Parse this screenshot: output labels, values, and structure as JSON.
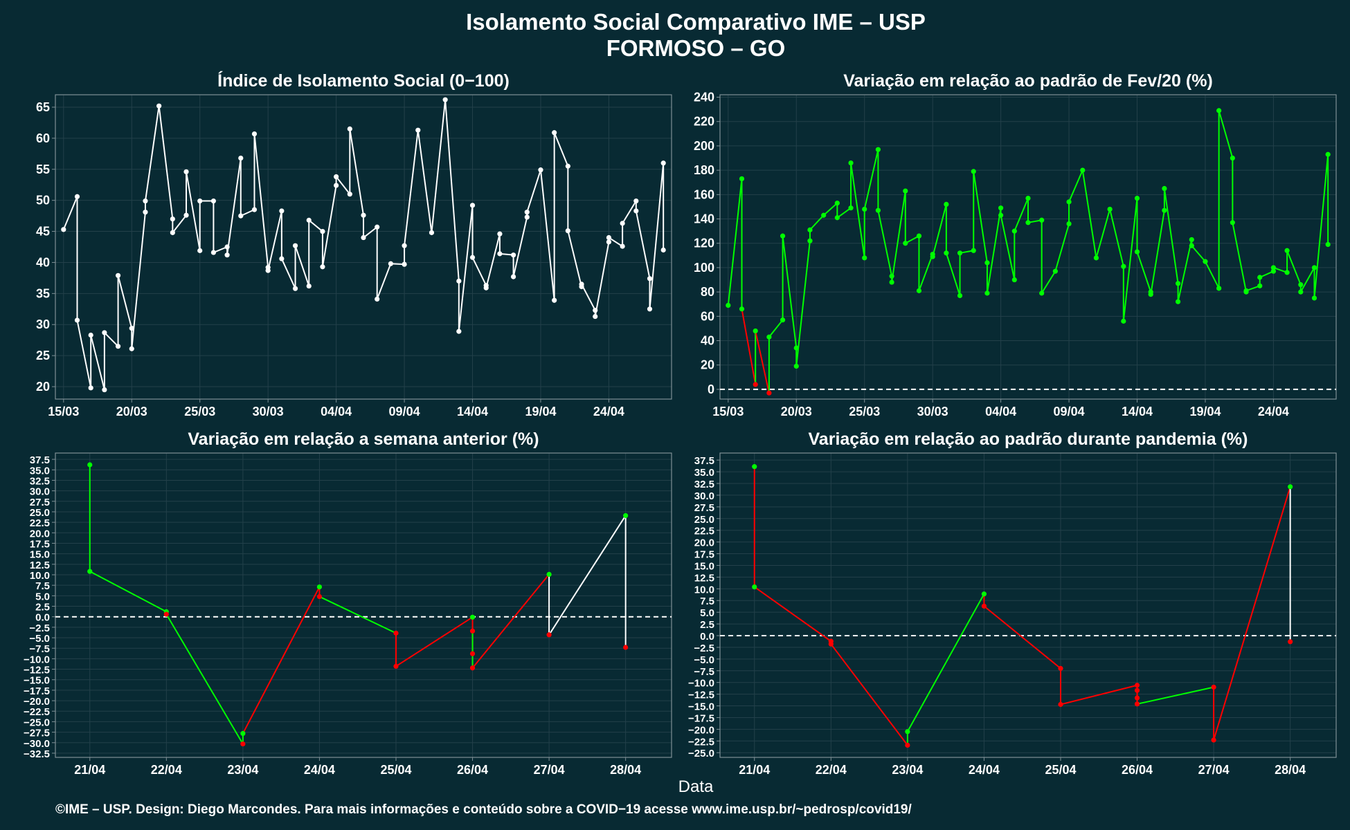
{
  "header": {
    "title_line1": "Isolamento Social Comparativo IME – USP",
    "title_line2": "FORMOSO – GO"
  },
  "footer": {
    "xlabel": "Data",
    "caption": "©IME – USP. Design: Diego Marcondes. Para mais informações e conteúdo sobre a COVID−19 acesse www.ime.usp.br/~pedrosp/covid19/"
  },
  "colors": {
    "background": "#082a33",
    "white_line": "#ffffff",
    "up": "#00ff00",
    "down": "#ff0000",
    "zero_line": "#ffffff"
  },
  "chart_data": [
    {
      "id": "indice",
      "type": "line",
      "title": "Índice de Isolamento Social (0−100)",
      "xlabel": "",
      "ylabel": "",
      "x_tick_labels": [
        "15/03",
        "20/03",
        "25/03",
        "30/03",
        "04/04",
        "09/04",
        "14/04",
        "19/04",
        "24/04"
      ],
      "x_tick_days": [
        0,
        5,
        10,
        15,
        20,
        25,
        30,
        35,
        40
      ],
      "x_range": [
        -0.6,
        44.6
      ],
      "y_ticks": [
        20,
        25,
        30,
        35,
        40,
        45,
        50,
        55,
        60,
        65
      ],
      "y_range": [
        18,
        67
      ],
      "color": "#ffffff",
      "grid": true,
      "points": [
        [
          0,
          45.3
        ],
        [
          1,
          50.6
        ],
        [
          1,
          30.7
        ],
        [
          2,
          19.8
        ],
        [
          2,
          28.3
        ],
        [
          3,
          19.5
        ],
        [
          3,
          28.7
        ],
        [
          4,
          26.5
        ],
        [
          4,
          37.9
        ],
        [
          5,
          29.4
        ],
        [
          5,
          26.1
        ],
        [
          6,
          48.1
        ],
        [
          6,
          49.9
        ],
        [
          7,
          65.2
        ],
        [
          8,
          47.0
        ],
        [
          8,
          44.8
        ],
        [
          9,
          47.6
        ],
        [
          9,
          54.6
        ],
        [
          10,
          41.9
        ],
        [
          10,
          49.9
        ],
        [
          11,
          49.9
        ],
        [
          11,
          41.6
        ],
        [
          12,
          42.5
        ],
        [
          12,
          41.2
        ],
        [
          13,
          56.8
        ],
        [
          13,
          47.5
        ],
        [
          14,
          48.5
        ],
        [
          14,
          60.7
        ],
        [
          15,
          39.2
        ],
        [
          15,
          38.7
        ],
        [
          16,
          48.3
        ],
        [
          16,
          40.6
        ],
        [
          17,
          35.8
        ],
        [
          17,
          42.7
        ],
        [
          18,
          36.2
        ],
        [
          18,
          46.8
        ],
        [
          19,
          45.0
        ],
        [
          19,
          39.3
        ],
        [
          20,
          52.4
        ],
        [
          20,
          53.8
        ],
        [
          21,
          51.0
        ],
        [
          21,
          61.5
        ],
        [
          22,
          47.6
        ],
        [
          22,
          44.0
        ],
        [
          23,
          45.7
        ],
        [
          23,
          34.1
        ],
        [
          24,
          39.8
        ],
        [
          25,
          39.7
        ],
        [
          25,
          42.7
        ],
        [
          26,
          61.3
        ],
        [
          27,
          44.8
        ],
        [
          28,
          66.2
        ],
        [
          29,
          37.0
        ],
        [
          29,
          28.9
        ],
        [
          30,
          49.2
        ],
        [
          30,
          40.8
        ],
        [
          31,
          36.3
        ],
        [
          31,
          35.9
        ],
        [
          32,
          44.6
        ],
        [
          32,
          41.4
        ],
        [
          33,
          41.2
        ],
        [
          33,
          37.7
        ],
        [
          34,
          47.3
        ],
        [
          34,
          48.1
        ],
        [
          35,
          54.9
        ],
        [
          36,
          33.9
        ],
        [
          36,
          60.9
        ],
        [
          37,
          55.5
        ],
        [
          37,
          45.1
        ],
        [
          38,
          36.1
        ],
        [
          38,
          36.5
        ],
        [
          39,
          32.3
        ],
        [
          39,
          31.3
        ],
        [
          40,
          43.3
        ],
        [
          40,
          44.0
        ],
        [
          41,
          42.6
        ],
        [
          41,
          46.3
        ],
        [
          42,
          49.9
        ],
        [
          42,
          48.3
        ],
        [
          43,
          37.4
        ],
        [
          43,
          32.5
        ],
        [
          44,
          56.0
        ],
        [
          44,
          42.0
        ]
      ]
    },
    {
      "id": "fev20",
      "type": "line",
      "title": "Variação em relação ao padrão de Fev/20 (%)",
      "xlabel": "",
      "ylabel": "",
      "x_tick_labels": [
        "15/03",
        "20/03",
        "25/03",
        "30/03",
        "04/04",
        "09/04",
        "14/04",
        "19/04",
        "24/04"
      ],
      "x_tick_days": [
        0,
        5,
        10,
        15,
        20,
        25,
        30,
        35,
        40
      ],
      "x_range": [
        -0.6,
        44.6
      ],
      "y_ticks": [
        0,
        20,
        40,
        60,
        80,
        100,
        120,
        140,
        160,
        180,
        200,
        220,
        240
      ],
      "y_range": [
        -8,
        242
      ],
      "zero_line": true,
      "grid": true,
      "segments_colored": true,
      "points": [
        [
          0,
          69
        ],
        [
          1,
          173
        ],
        [
          1,
          66
        ],
        [
          2,
          4
        ],
        [
          2,
          48
        ],
        [
          3,
          -3
        ],
        [
          3,
          43
        ],
        [
          4,
          57
        ],
        [
          4,
          126
        ],
        [
          5,
          34
        ],
        [
          5,
          19
        ],
        [
          6,
          122
        ],
        [
          6,
          131
        ],
        [
          7,
          143
        ],
        [
          8,
          153
        ],
        [
          8,
          141
        ],
        [
          9,
          149
        ],
        [
          9,
          186
        ],
        [
          10,
          108
        ],
        [
          10,
          148
        ],
        [
          11,
          197
        ],
        [
          11,
          147
        ],
        [
          12,
          93
        ],
        [
          12,
          88
        ],
        [
          13,
          163
        ],
        [
          13,
          120
        ],
        [
          14,
          126
        ],
        [
          14,
          81
        ],
        [
          15,
          111
        ],
        [
          15,
          109
        ],
        [
          16,
          152
        ],
        [
          16,
          112
        ],
        [
          17,
          77
        ],
        [
          17,
          112
        ],
        [
          18,
          114
        ],
        [
          18,
          179
        ],
        [
          19,
          104
        ],
        [
          19,
          79
        ],
        [
          20,
          149
        ],
        [
          20,
          143
        ],
        [
          21,
          90
        ],
        [
          21,
          130
        ],
        [
          22,
          157
        ],
        [
          22,
          137
        ],
        [
          23,
          139
        ],
        [
          23,
          79
        ],
        [
          24,
          97
        ],
        [
          25,
          136
        ],
        [
          25,
          154
        ],
        [
          26,
          180
        ],
        [
          27,
          108
        ],
        [
          28,
          148
        ],
        [
          29,
          101
        ],
        [
          29,
          56
        ],
        [
          30,
          157
        ],
        [
          30,
          113
        ],
        [
          31,
          80
        ],
        [
          31,
          78
        ],
        [
          32,
          147
        ],
        [
          32,
          165
        ],
        [
          33,
          87
        ],
        [
          33,
          72
        ],
        [
          34,
          123
        ],
        [
          34,
          118
        ],
        [
          35,
          105
        ],
        [
          36,
          83
        ],
        [
          36,
          229
        ],
        [
          37,
          190
        ],
        [
          37,
          137
        ],
        [
          38,
          80
        ],
        [
          38,
          81
        ],
        [
          39,
          85
        ],
        [
          39,
          92
        ],
        [
          40,
          97
        ],
        [
          40,
          100
        ],
        [
          41,
          96
        ],
        [
          41,
          114
        ],
        [
          42,
          86
        ],
        [
          42,
          80
        ],
        [
          43,
          100
        ],
        [
          43,
          75
        ],
        [
          44,
          193
        ],
        [
          44,
          119
        ]
      ],
      "down_segments": [
        [
          2,
          3
        ],
        [
          4,
          5
        ]
      ]
    },
    {
      "id": "semana",
      "type": "line",
      "title": "Variação em relação a semana anterior (%)",
      "xlabel": "",
      "ylabel": "",
      "x_tick_labels": [
        "21/04",
        "22/04",
        "23/04",
        "24/04",
        "25/04",
        "26/04",
        "27/04",
        "28/04"
      ],
      "x_range": [
        -0.45,
        7.6
      ],
      "y_ticks": [
        -32.5,
        -30,
        -27.5,
        -25,
        -22.5,
        -20,
        -17.5,
        -15,
        -12.5,
        -10,
        -7.5,
        -5,
        -2.5,
        0,
        2.5,
        5,
        7.5,
        10,
        12.5,
        15,
        17.5,
        20,
        22.5,
        25,
        27.5,
        30,
        32.5,
        35,
        37.5
      ],
      "y_tick_labels": [
        "−32.5",
        "−30.0",
        "−27.5",
        "−25.0",
        "−22.5",
        "−20.0",
        "−17.5",
        "−15.0",
        "−12.5",
        "−10.0",
        "−7.5",
        "−5.0",
        "−2.5",
        "0.0",
        "2.5",
        "5.0",
        "7.5",
        "10.0",
        "12.5",
        "15.0",
        "17.5",
        "20.0",
        "22.5",
        "25.0",
        "27.5",
        "30.0",
        "32.5",
        "35.0",
        "37.5"
      ],
      "y_range": [
        -33.5,
        39
      ],
      "zero_line": true,
      "grid": true,
      "points": [
        [
          0,
          36.2,
          "up"
        ],
        [
          0,
          10.8,
          "up"
        ],
        [
          1,
          1.2,
          "up"
        ],
        [
          1,
          0.6,
          "down"
        ],
        [
          2,
          -30.3,
          "down"
        ],
        [
          2,
          -27.8,
          "up"
        ],
        [
          3,
          7.1,
          "up"
        ],
        [
          3,
          4.8,
          "down"
        ],
        [
          4,
          -3.9,
          "down"
        ],
        [
          4,
          -11.8,
          "down"
        ],
        [
          5,
          -0.1,
          "up"
        ],
        [
          5,
          -8.8,
          "down"
        ],
        [
          5,
          -3.4,
          "down"
        ],
        [
          5,
          -12.2,
          "down"
        ],
        [
          6,
          10.1,
          "up"
        ],
        [
          6,
          -4.3,
          "down"
        ],
        [
          7,
          24.1,
          "up"
        ],
        [
          7,
          -7.3,
          "down"
        ]
      ],
      "segment_colors": [
        "up",
        "up",
        "down",
        "up",
        "up",
        "down",
        "down",
        "up",
        "down",
        "down",
        "down",
        "down",
        "up",
        "down",
        "white"
      ]
    },
    {
      "id": "pandemia",
      "type": "line",
      "title": "Variação em relação ao padrão durante pandemia (%)",
      "xlabel": "",
      "ylabel": "",
      "x_tick_labels": [
        "21/04",
        "22/04",
        "23/04",
        "24/04",
        "25/04",
        "26/04",
        "27/04",
        "28/04"
      ],
      "x_range": [
        -0.45,
        7.6
      ],
      "y_ticks": [
        -25,
        -22.5,
        -20,
        -17.5,
        -15,
        -12.5,
        -10,
        -7.5,
        -5,
        -2.5,
        0,
        2.5,
        5,
        7.5,
        10,
        12.5,
        15,
        17.5,
        20,
        22.5,
        25,
        27.5,
        30,
        32.5,
        35,
        37.5
      ],
      "y_tick_labels": [
        "−25.0",
        "−22.5",
        "−20.0",
        "−17.5",
        "−15.0",
        "−12.5",
        "−10.0",
        "−7.5",
        "−5.0",
        "−2.5",
        "0.0",
        "2.5",
        "5.0",
        "7.5",
        "10.0",
        "12.5",
        "15.0",
        "17.5",
        "20.0",
        "22.5",
        "25.0",
        "27.5",
        "30.0",
        "32.5",
        "35.0",
        "37.5"
      ],
      "y_range": [
        -26,
        39
      ],
      "zero_line": true,
      "grid": true,
      "points": [
        [
          0,
          36.1,
          "up"
        ],
        [
          0,
          10.4,
          "up"
        ],
        [
          1,
          -1.2,
          "down"
        ],
        [
          1,
          -1.8,
          "down"
        ],
        [
          2,
          -23.4,
          "down"
        ],
        [
          2,
          -20.5,
          "up"
        ],
        [
          3,
          8.9,
          "up"
        ],
        [
          3,
          6.3,
          "down"
        ],
        [
          4,
          -7.0,
          "down"
        ],
        [
          4,
          -14.7,
          "down"
        ],
        [
          5,
          -10.6,
          "down"
        ],
        [
          5,
          -11.7,
          "down"
        ],
        [
          5,
          -13.3,
          "down"
        ],
        [
          5,
          -14.6,
          "down"
        ],
        [
          6,
          -11.0,
          "down"
        ],
        [
          6,
          -22.3,
          "down"
        ],
        [
          7,
          31.8,
          "up"
        ],
        [
          7,
          -1.3,
          "down"
        ]
      ],
      "segment_colors": [
        "down",
        "down",
        "down",
        "down",
        "up",
        "up",
        "down",
        "down",
        "down",
        "down",
        "down",
        "down",
        "down",
        "up",
        "down",
        "down",
        "white"
      ]
    }
  ]
}
